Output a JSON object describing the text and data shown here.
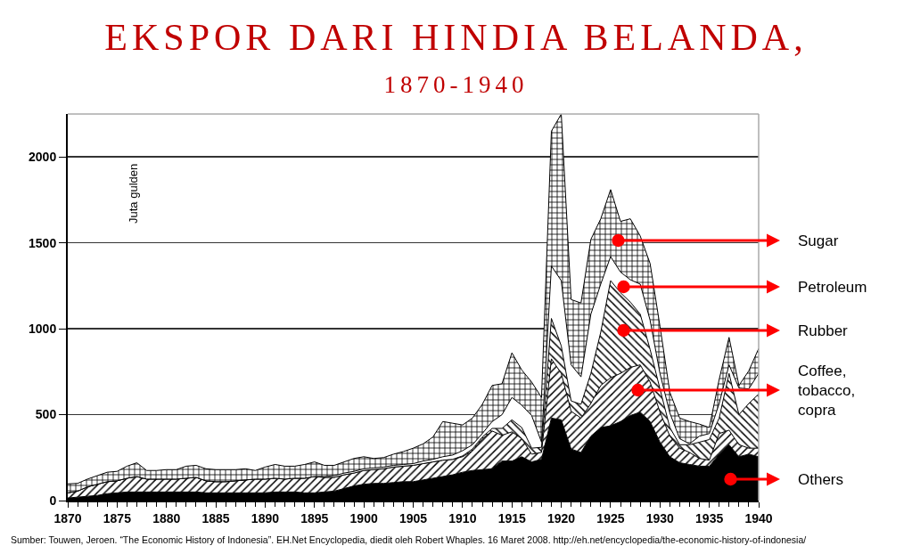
{
  "chart_data": {
    "type": "area",
    "stacked": true,
    "title": "EKSPOR DARI HINDIA BELANDA,",
    "subtitle": "1870-1940",
    "ylabel": "Juta gulden",
    "x": [
      1870,
      1871,
      1872,
      1873,
      1874,
      1875,
      1876,
      1877,
      1878,
      1879,
      1880,
      1881,
      1882,
      1883,
      1884,
      1885,
      1886,
      1887,
      1888,
      1889,
      1890,
      1891,
      1892,
      1893,
      1894,
      1895,
      1896,
      1897,
      1898,
      1899,
      1900,
      1901,
      1902,
      1903,
      1904,
      1905,
      1906,
      1907,
      1908,
      1909,
      1910,
      1911,
      1912,
      1913,
      1914,
      1915,
      1916,
      1917,
      1918,
      1919,
      1920,
      1921,
      1922,
      1923,
      1924,
      1925,
      1926,
      1927,
      1928,
      1929,
      1930,
      1931,
      1932,
      1933,
      1934,
      1935,
      1936,
      1937,
      1938,
      1939,
      1940
    ],
    "series": [
      {
        "name": "Others",
        "color": "#000000",
        "values": [
          15,
          20,
          25,
          30,
          40,
          45,
          50,
          50,
          50,
          50,
          50,
          50,
          50,
          50,
          45,
          45,
          45,
          45,
          45,
          45,
          45,
          50,
          50,
          50,
          45,
          45,
          50,
          55,
          70,
          85,
          95,
          100,
          100,
          105,
          110,
          110,
          120,
          130,
          140,
          150,
          165,
          175,
          180,
          185,
          230,
          230,
          255,
          225,
          240,
          480,
          470,
          300,
          280,
          375,
          425,
          435,
          460,
          495,
          515,
          460,
          340,
          255,
          220,
          210,
          200,
          200,
          270,
          325,
          255,
          270,
          255
        ]
      },
      {
        "name": "Coffee, tobacco, copra",
        "color": "#000000",
        "values": [
          30,
          35,
          55,
          65,
          70,
          70,
          80,
          90,
          75,
          75,
          75,
          75,
          80,
          85,
          70,
          65,
          65,
          70,
          75,
          80,
          80,
          80,
          75,
          80,
          85,
          95,
          85,
          80,
          80,
          75,
          80,
          80,
          85,
          90,
          90,
          95,
          95,
          95,
          95,
          90,
          90,
          115,
          180,
          220,
          150,
          170,
          105,
          45,
          40,
          345,
          270,
          220,
          200,
          190,
          245,
          280,
          280,
          280,
          275,
          230,
          175,
          120,
          85,
          70,
          45,
          35,
          120,
          85,
          70,
          35,
          50
        ]
      },
      {
        "name": "Rubber",
        "color": "#000000",
        "values": [
          0,
          0,
          0,
          0,
          0,
          0,
          0,
          0,
          0,
          0,
          0,
          0,
          0,
          0,
          0,
          0,
          0,
          0,
          0,
          0,
          0,
          0,
          0,
          0,
          0,
          0,
          0,
          0,
          0,
          0,
          0,
          0,
          0,
          0,
          0,
          0,
          0,
          0,
          0,
          0,
          5,
          10,
          10,
          15,
          40,
          70,
          65,
          35,
          30,
          235,
          160,
          60,
          80,
          175,
          310,
          565,
          470,
          380,
          295,
          190,
          135,
          50,
          20,
          45,
          95,
          120,
          90,
          330,
          175,
          260,
          315
        ]
      },
      {
        "name": "Petroleum",
        "color": "#ffffff",
        "values": [
          0,
          0,
          0,
          0,
          0,
          0,
          0,
          0,
          0,
          0,
          0,
          0,
          0,
          0,
          0,
          0,
          0,
          0,
          0,
          0,
          0,
          0,
          0,
          0,
          0,
          0,
          5,
          10,
          10,
          10,
          10,
          10,
          10,
          10,
          10,
          10,
          15,
          15,
          20,
          25,
          30,
          25,
          20,
          40,
          80,
          130,
          130,
          190,
          30,
          305,
          380,
          210,
          160,
          345,
          280,
          140,
          120,
          130,
          175,
          170,
          90,
          85,
          35,
          5,
          35,
          35,
          85,
          50,
          155,
          85,
          120
        ]
      },
      {
        "name": "Sugar",
        "color": "#000000",
        "values": [
          52,
          45,
          45,
          50,
          55,
          55,
          70,
          80,
          50,
          50,
          55,
          55,
          70,
          70,
          70,
          70,
          70,
          65,
          65,
          50,
          70,
          80,
          75,
          70,
          80,
          85,
          65,
          60,
          65,
          75,
          70,
          55,
          55,
          65,
          75,
          90,
          100,
          130,
          205,
          185,
          150,
          155,
          170,
          210,
          180,
          260,
          205,
          195,
          260,
          785,
          970,
          380,
          430,
          435,
          380,
          390,
          295,
          355,
          280,
          330,
          275,
          120,
          120,
          130,
          70,
          35,
          140,
          160,
          15,
          105,
          145
        ]
      }
    ],
    "xlim": [
      1870,
      1940
    ],
    "xticks": [
      1870,
      1875,
      1880,
      1885,
      1890,
      1895,
      1900,
      1905,
      1910,
      1915,
      1920,
      1925,
      1930,
      1935,
      1940
    ],
    "ylim": [
      0,
      2250
    ],
    "yticks": [
      0,
      500,
      1000,
      1500,
      2000
    ],
    "grid": "y",
    "legend": false,
    "marker": "none",
    "annotations": [
      "Sumber: Touwen, Jeroen. “The Economic History of Indonesia”. EH.Net Encyclopedia, diedit oleh Robert Whaples. 16 Maret 2008. http://eh.net/encyclopedia/the-economic-history-of-indonesia/"
    ]
  }
}
